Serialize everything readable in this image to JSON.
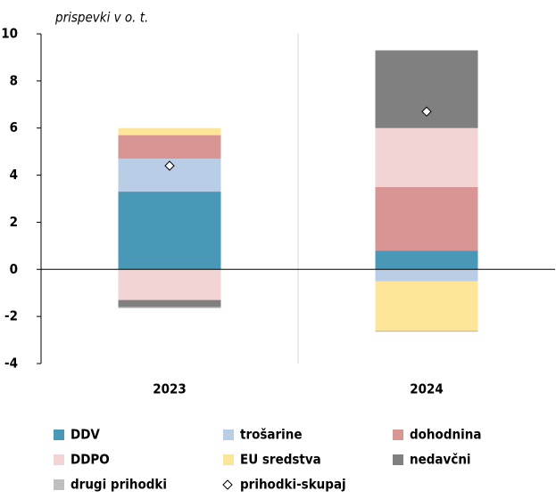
{
  "chart_data": {
    "type": "bar",
    "stacked": true,
    "subtitle": "prispevki v o. t.",
    "categories": [
      "2023",
      "2024"
    ],
    "series": [
      {
        "name": "DDV",
        "color": "#4a98b8",
        "values": [
          3.3,
          0.8
        ]
      },
      {
        "name": "trošarine",
        "color": "#b9cde6",
        "values": [
          1.4,
          -0.5
        ]
      },
      {
        "name": "dohodnina",
        "color": "#d99594",
        "values": [
          1.0,
          2.7
        ]
      },
      {
        "name": "DDPO",
        "color": "#f2d4d5",
        "values": [
          -1.3,
          2.5
        ]
      },
      {
        "name": "EU sredstva",
        "color": "#fde699",
        "values": [
          0.3,
          -2.1
        ]
      },
      {
        "name": "nedavčni",
        "color": "#808080",
        "values": [
          -0.3,
          3.3
        ]
      },
      {
        "name": "drugi prihodki",
        "color": "#bfbfbf",
        "values": [
          -0.05,
          -0.05
        ]
      },
      {
        "name": "prihodki-skupaj",
        "type": "marker",
        "marker": "diamond",
        "color": "#ffffff",
        "values": [
          4.4,
          6.7
        ]
      }
    ],
    "ylim": [
      -4,
      10
    ],
    "yticks": [
      -4,
      -2,
      0,
      2,
      4,
      6,
      8,
      10
    ],
    "grid": false,
    "legend": "bottom"
  }
}
